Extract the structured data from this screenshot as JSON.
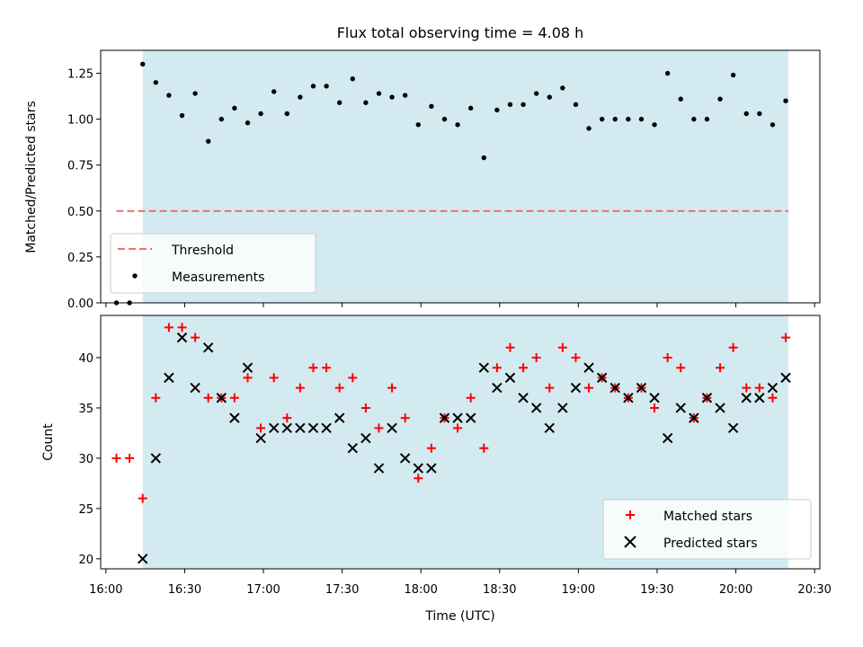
{
  "chart_data": [
    {
      "type": "scatter",
      "title": "Flux total observing time = 4.08 h",
      "ylabel": "Matched/Predicted stars",
      "ylim": [
        0,
        1.375
      ],
      "yticks": [
        "0.00",
        "0.25",
        "0.50",
        "0.75",
        "1.00",
        "1.25"
      ],
      "grid": false,
      "shaded_span": [
        "16:14",
        "20:20"
      ],
      "shaded_color": "#d3eaf1",
      "legend_position": "lower-left",
      "threshold": {
        "name": "Threshold",
        "value": 0.5,
        "x_range": [
          "16:04",
          "20:20"
        ],
        "color": "#f07070"
      },
      "series": [
        {
          "name": "Measurements",
          "color": "#000000",
          "x": [
            "16:04",
            "16:09",
            "16:14",
            "16:19",
            "16:24",
            "16:29",
            "16:34",
            "16:39",
            "16:44",
            "16:49",
            "16:54",
            "16:59",
            "17:04",
            "17:09",
            "17:14",
            "17:19",
            "17:24",
            "17:29",
            "17:34",
            "17:39",
            "17:44",
            "17:49",
            "17:54",
            "17:59",
            "18:04",
            "18:09",
            "18:14",
            "18:19",
            "18:24",
            "18:29",
            "18:34",
            "18:39",
            "18:44",
            "18:49",
            "18:54",
            "18:59",
            "19:04",
            "19:09",
            "19:14",
            "19:19",
            "19:24",
            "19:29",
            "19:34",
            "19:39",
            "19:44",
            "19:49",
            "19:54",
            "19:59",
            "20:04",
            "20:09",
            "20:14",
            "20:19"
          ],
          "y": [
            0.0,
            0.0,
            1.3,
            1.2,
            1.13,
            1.02,
            1.14,
            0.88,
            1.0,
            1.06,
            0.98,
            1.03,
            1.15,
            1.03,
            1.12,
            1.18,
            1.18,
            1.09,
            1.22,
            1.09,
            1.14,
            1.12,
            1.13,
            0.97,
            1.07,
            1.0,
            0.97,
            1.06,
            0.79,
            1.05,
            1.08,
            1.08,
            1.14,
            1.12,
            1.17,
            1.08,
            0.95,
            1.0,
            1.0,
            1.0,
            1.0,
            0.97,
            1.25,
            1.11,
            1.0,
            1.0,
            1.11,
            1.24,
            1.03,
            1.03,
            0.97,
            1.1
          ]
        }
      ]
    },
    {
      "type": "scatter",
      "xlabel": "Time (UTC)",
      "ylabel": "Count",
      "ylim": [
        19,
        44.2
      ],
      "yticks": [
        "20",
        "25",
        "30",
        "35",
        "40"
      ],
      "xticks": [
        "16:00",
        "16:30",
        "17:00",
        "17:30",
        "18:00",
        "18:30",
        "19:00",
        "19:30",
        "20:00",
        "20:30"
      ],
      "xlim": [
        "15:58",
        "20:32"
      ],
      "grid": false,
      "shaded_span": [
        "16:14",
        "20:20"
      ],
      "shaded_color": "#d3eaf1",
      "legend_position": "lower-right",
      "series": [
        {
          "name": "Matched stars",
          "marker": "+",
          "color": "#ff0000",
          "x": [
            "16:04",
            "16:09",
            "16:14",
            "16:19",
            "16:24",
            "16:29",
            "16:34",
            "16:39",
            "16:44",
            "16:49",
            "16:54",
            "16:59",
            "17:04",
            "17:09",
            "17:14",
            "17:19",
            "17:24",
            "17:29",
            "17:34",
            "17:39",
            "17:44",
            "17:49",
            "17:54",
            "17:59",
            "18:04",
            "18:09",
            "18:14",
            "18:19",
            "18:24",
            "18:29",
            "18:34",
            "18:39",
            "18:44",
            "18:49",
            "18:54",
            "18:59",
            "19:04",
            "19:09",
            "19:14",
            "19:19",
            "19:24",
            "19:29",
            "19:34",
            "19:39",
            "19:44",
            "19:49",
            "19:54",
            "19:59",
            "20:04",
            "20:09",
            "20:14",
            "20:19"
          ],
          "y": [
            30,
            30,
            26,
            36,
            43,
            43,
            42,
            36,
            36,
            36,
            38,
            33,
            38,
            34,
            37,
            39,
            39,
            37,
            38,
            35,
            33,
            37,
            34,
            28,
            31,
            34,
            33,
            36,
            31,
            39,
            41,
            39,
            40,
            37,
            41,
            40,
            37,
            38,
            37,
            36,
            37,
            35,
            40,
            39,
            34,
            36,
            39,
            41,
            37,
            37,
            36,
            42
          ]
        },
        {
          "name": "Predicted stars",
          "marker": "x",
          "color": "#000000",
          "x": [
            "16:14",
            "16:19",
            "16:24",
            "16:29",
            "16:34",
            "16:39",
            "16:44",
            "16:49",
            "16:54",
            "16:59",
            "17:04",
            "17:09",
            "17:14",
            "17:19",
            "17:24",
            "17:29",
            "17:34",
            "17:39",
            "17:44",
            "17:49",
            "17:54",
            "17:59",
            "18:04",
            "18:09",
            "18:14",
            "18:19",
            "18:24",
            "18:29",
            "18:34",
            "18:39",
            "18:44",
            "18:49",
            "18:54",
            "18:59",
            "19:04",
            "19:09",
            "19:14",
            "19:19",
            "19:24",
            "19:29",
            "19:34",
            "19:39",
            "19:44",
            "19:49",
            "19:54",
            "19:59",
            "20:04",
            "20:09",
            "20:14",
            "20:19"
          ],
          "y": [
            20,
            30,
            38,
            42,
            37,
            41,
            36,
            34,
            39,
            32,
            33,
            33,
            33,
            33,
            33,
            34,
            31,
            32,
            29,
            33,
            30,
            29,
            29,
            34,
            34,
            34,
            39,
            37,
            38,
            36,
            35,
            33,
            35,
            37,
            39,
            38,
            37,
            36,
            37,
            36,
            32,
            35,
            34,
            36,
            35,
            33,
            36,
            36,
            37,
            38
          ]
        }
      ]
    }
  ]
}
